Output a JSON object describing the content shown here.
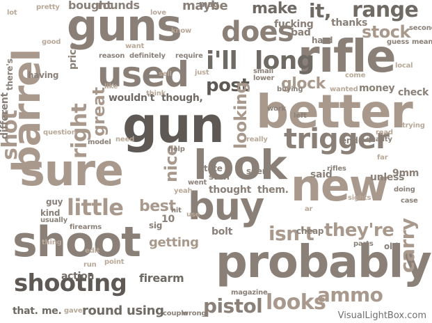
{
  "watermark": "VisualLightBox.com",
  "colors": {
    "background": "#ffffff",
    "palette": [
      "#6f6a64",
      "#8a8078",
      "#a8998c",
      "#9c8c7e",
      "#5e5954",
      "#b8a898"
    ]
  },
  "words": [
    "gun",
    "better",
    "probably",
    "shoot",
    "look",
    "new",
    "sure",
    "buy",
    "barrel",
    "guns",
    "rifle",
    "used",
    "shooting",
    "trigger",
    "does",
    "i'll",
    "long",
    "shot",
    "little",
    "post",
    "glock",
    "stock",
    "pistol",
    "looks",
    "ammo",
    "isn't",
    "they're",
    "carry",
    "right",
    "great",
    "nice",
    "looking",
    "best",
    "getting",
    "firearm",
    "round",
    "using",
    "range",
    "it,",
    "make",
    "thanks",
    "bought",
    "rounds",
    "maybe",
    "9mm",
    "wouldn't",
    "though,",
    "thought",
    "them.",
    "firearms",
    "bolt",
    "that.",
    "me.",
    "different",
    "there's",
    "price",
    "money",
    "check",
    "unless",
    "said",
    "rifles",
    "quality",
    "end",
    "state",
    "help",
    "model",
    "guy",
    "kind",
    "usually",
    "action",
    "bad",
    "hard",
    "guess",
    "mean",
    "second",
    "cheap",
    "parts",
    "old",
    "case",
    "doing",
    "fucking",
    "lower",
    "small",
    "buying",
    "mag",
    "couple",
    "magazine",
    "wrong",
    "10",
    "sig",
    "seen",
    "stuff",
    "went",
    "hit",
    "left",
    "work",
    "having",
    "reason",
    "require",
    "definitely",
    "pretty",
    "lot",
    "love",
    "good",
    "want",
    "wanted",
    "local",
    "come",
    "ar",
    "edit",
    "gave",
    "sell",
    "question",
    "thing",
    "far",
    "point",
    "read",
    "run",
    "trying",
    "know",
    "like",
    "just",
    "think",
    "really",
    "need",
    "use",
    "yeah",
    "sights"
  ]
}
